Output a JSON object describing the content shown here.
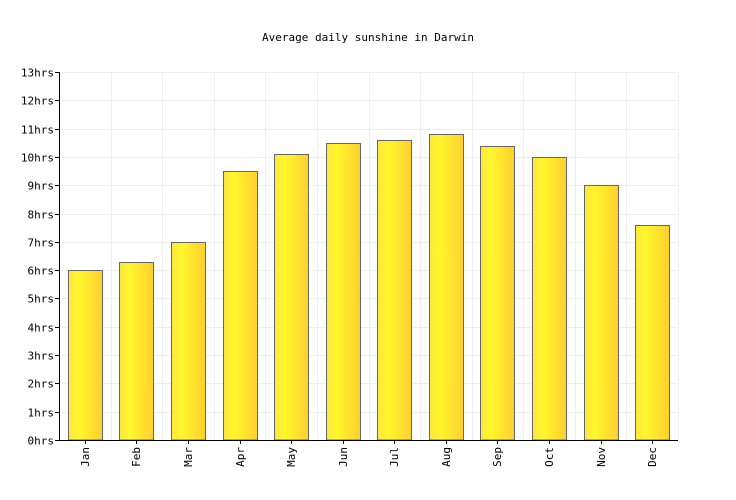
{
  "chart_data": {
    "type": "bar",
    "title": "Average daily sunshine in Darwin",
    "categories": [
      "Jan",
      "Feb",
      "Mar",
      "Apr",
      "May",
      "Jun",
      "Jul",
      "Aug",
      "Sep",
      "Oct",
      "Nov",
      "Dec"
    ],
    "values": [
      6.0,
      6.3,
      7.0,
      9.5,
      10.1,
      10.5,
      10.6,
      10.8,
      10.4,
      10.0,
      9.0,
      7.6
    ],
    "ylim": [
      0,
      13
    ],
    "yticks": [
      "0hrs",
      "1hrs",
      "2hrs",
      "3hrs",
      "4hrs",
      "5hrs",
      "6hrs",
      "7hrs",
      "8hrs",
      "9hrs",
      "10hrs",
      "11hrs",
      "12hrs",
      "13hrs"
    ],
    "grid": true,
    "bar_colors": {
      "edge": "#ffe43a",
      "center": "#fff22a",
      "stroke": "#666666"
    }
  }
}
